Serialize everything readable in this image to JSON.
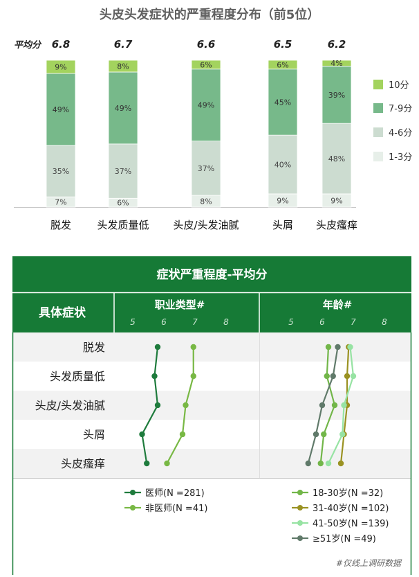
{
  "chart_data": [
    {
      "type": "bar",
      "stacked": true,
      "title": "头皮头发症状的严重程度分布（前5位）",
      "avg_label": "平均分",
      "categories": [
        "脱发",
        "头发质量低",
        "头皮/头发油腻",
        "头屑",
        "头皮瘙痒"
      ],
      "averages": [
        "6.8",
        "6.7",
        "6.6",
        "6.5",
        "6.2"
      ],
      "series": [
        {
          "name": "1-3分",
          "values": [
            7,
            6,
            8,
            9,
            9
          ],
          "labels": [
            "7%",
            "6%",
            "8%",
            "9%",
            "9%"
          ],
          "color": "#e7efe9"
        },
        {
          "name": "4-6分",
          "values": [
            35,
            37,
            37,
            40,
            48
          ],
          "labels": [
            "35%",
            "37%",
            "37%",
            "40%",
            "48%"
          ],
          "color": "#ccdcd0"
        },
        {
          "name": "7-9分",
          "values": [
            49,
            49,
            49,
            45,
            39
          ],
          "labels": [
            "49%",
            "49%",
            "49%",
            "45%",
            "39%"
          ],
          "color": "#77b98a"
        },
        {
          "name": "10分",
          "values": [
            9,
            8,
            6,
            6,
            4
          ],
          "labels": [
            "9%",
            "8%",
            "6%",
            "6%",
            "4%"
          ],
          "color": "#a3d35e"
        }
      ],
      "legend_order": [
        "10分",
        "7-9分",
        "4-6分",
        "1-3分"
      ],
      "legend_position": "right"
    },
    {
      "type": "line",
      "title": "症状严重程度-平均分",
      "row_header": "具体症状",
      "rows": [
        "脱发",
        "头发质量低",
        "头皮/头发油腻",
        "头屑",
        "头皮瘙痒"
      ],
      "ticks": [
        "5",
        "6",
        "7",
        "8"
      ],
      "xlim": [
        5,
        8
      ],
      "panels": [
        {
          "title": "职业类型#",
          "series": [
            {
              "name": "医师(N =281)",
              "color": "#1e7b3c",
              "values": [
                5.8,
                5.7,
                5.8,
                5.3,
                5.45
              ]
            },
            {
              "name": "非医师(N =41)",
              "color": "#78b844",
              "values": [
                6.95,
                6.95,
                6.7,
                6.6,
                6.1
              ]
            }
          ]
        },
        {
          "title": "年龄#",
          "series": [
            {
              "name": "18-30岁(N =32)",
              "color": "#72b649",
              "values": [
                6.2,
                6.15,
                6.4,
                6.05,
                5.95
              ]
            },
            {
              "name": "31-40岁(N =102)",
              "color": "#9a9222",
              "values": [
                6.85,
                6.8,
                6.8,
                6.7,
                6.6
              ]
            },
            {
              "name": "41-50岁(N =139)",
              "color": "#97e3a3",
              "values": [
                6.9,
                7.0,
                6.7,
                6.65,
                6.2
              ]
            },
            {
              "name": "≥51岁(N =49)",
              "color": "#607a6a",
              "values": [
                6.5,
                6.35,
                6.0,
                5.8,
                5.55
              ]
            }
          ]
        }
      ],
      "footnote": "#仅线上调研数据"
    }
  ]
}
